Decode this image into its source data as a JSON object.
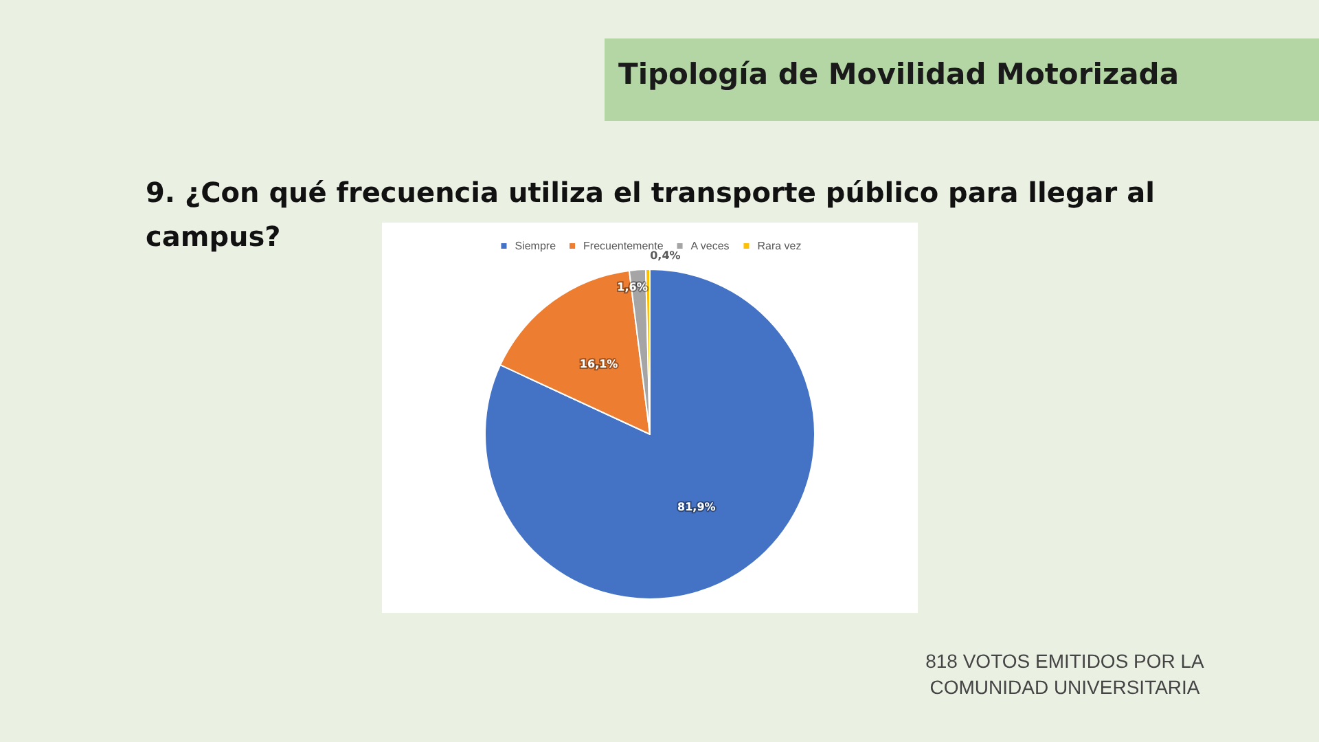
{
  "chart_data": {
    "type": "pie",
    "title": "Tipología de Movilidad Motorizada",
    "subtitle": "9. ¿Con qué frecuencia utiliza el transporte público para llegar al campus?",
    "categories": [
      "Siempre",
      "Frecuentemente",
      "A veces",
      "Rara vez"
    ],
    "values": [
      81.9,
      16.1,
      1.6,
      0.4
    ],
    "value_labels": [
      "81,9%",
      "16,1%",
      "1,6%",
      "0,4%"
    ],
    "colors": [
      "#4472c4",
      "#ed7d31",
      "#a5a5a5",
      "#ffc000"
    ],
    "legend": "top",
    "annotations": [
      "818  VOTOS EMITIDOS POR LA COMUNIDAD UNIVERSITARIA"
    ]
  }
}
